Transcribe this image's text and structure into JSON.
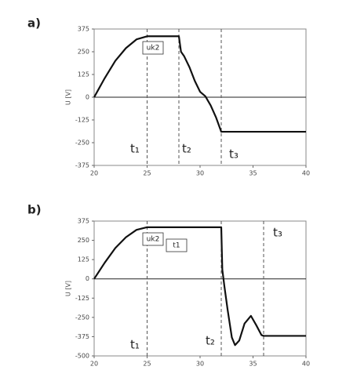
{
  "chart_data": [
    {
      "type": "line",
      "title": "a)",
      "y_label": "U [V]",
      "xlim": [
        20,
        40
      ],
      "xticks": [
        20,
        25,
        30,
        35,
        40
      ],
      "ylim": [
        -375,
        375
      ],
      "yticks": [
        375,
        250,
        125,
        0,
        -125,
        -250,
        -375
      ],
      "x": [
        20,
        21,
        22,
        23,
        24,
        25,
        26,
        27,
        28,
        28.2,
        28.5,
        29,
        29.5,
        30,
        30.5,
        31,
        31.5,
        32,
        33,
        34,
        35,
        36,
        37,
        38,
        39,
        40
      ],
      "series": [
        {
          "color": "#111111",
          "values": [
            0,
            105,
            200,
            270,
            318,
            335,
            335,
            335,
            335,
            250,
            225,
            165,
            90,
            30,
            5,
            -45,
            -110,
            -190,
            -190,
            -190,
            -190,
            -190,
            -190,
            -190,
            -190,
            -190
          ]
        }
      ],
      "vlines": [
        25,
        28,
        32
      ],
      "annotations": [
        {
          "text": "uk2",
          "boxed": true
        },
        {
          "text": "t₁",
          "boxed": false
        },
        {
          "text": "t₂",
          "boxed": false
        },
        {
          "text": "t₃",
          "boxed": false
        }
      ]
    },
    {
      "type": "line",
      "title": "b)",
      "y_label": "U [V]",
      "xlim": [
        20,
        40
      ],
      "xticks": [
        20,
        25,
        30,
        35,
        40
      ],
      "ylim": [
        -500,
        375
      ],
      "yticks": [
        375,
        250,
        125,
        0,
        -125,
        -250,
        -375,
        -500
      ],
      "x": [
        20,
        21,
        22,
        23,
        24,
        25,
        26,
        28,
        30,
        32,
        32.1,
        32.3,
        32.6,
        33,
        33.3,
        33.7,
        34.2,
        34.8,
        35.3,
        35.8,
        36,
        37,
        38,
        39,
        40
      ],
      "series": [
        {
          "color": "#111111",
          "values": [
            0,
            105,
            200,
            270,
            318,
            335,
            335,
            335,
            335,
            335,
            60,
            -50,
            -200,
            -380,
            -430,
            -400,
            -290,
            -240,
            -300,
            -365,
            -370,
            -370,
            -370,
            -370,
            -370
          ]
        }
      ],
      "vlines": [
        25,
        32,
        36
      ],
      "annotations": [
        {
          "text": "uk2",
          "boxed": true
        },
        {
          "text": "t1",
          "boxed": true
        },
        {
          "text": "t₁",
          "boxed": false
        },
        {
          "text": "t₂",
          "boxed": false
        },
        {
          "text": "t₃",
          "boxed": false
        }
      ]
    }
  ]
}
